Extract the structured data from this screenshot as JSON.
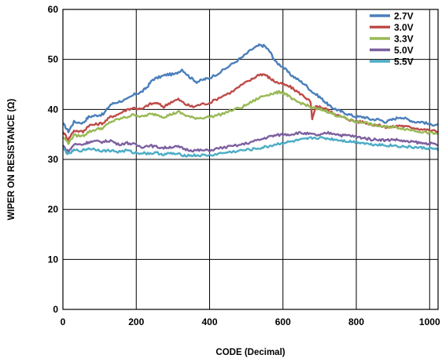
{
  "chart_data": {
    "type": "line",
    "title": "",
    "xlabel": "CODE (Decimal)",
    "ylabel": "WIPER ON RESISTANCE (Ω)",
    "xlim": [
      0,
      1023
    ],
    "ylim": [
      0,
      60
    ],
    "x_ticks": [
      0,
      200,
      400,
      600,
      800,
      1000
    ],
    "x_tick_labels": [
      "0",
      "200",
      "400",
      "600",
      "800",
      "1000"
    ],
    "y_ticks": [
      0,
      10,
      20,
      30,
      40,
      50,
      60
    ],
    "y_tick_labels": [
      "0",
      "10",
      "20",
      "30",
      "40",
      "50",
      "60"
    ],
    "grid": true,
    "legend_position": "top-right",
    "series": [
      {
        "name": "2.7V",
        "color": "#4a7ebb",
        "points": [
          [
            0,
            37.2
          ],
          [
            15,
            35.6
          ],
          [
            30,
            37.5
          ],
          [
            55,
            37.3
          ],
          [
            70,
            38.5
          ],
          [
            90,
            38.8
          ],
          [
            110,
            39
          ],
          [
            130,
            41
          ],
          [
            150,
            41.5
          ],
          [
            175,
            42
          ],
          [
            195,
            43
          ],
          [
            215,
            43.5
          ],
          [
            230,
            44.5
          ],
          [
            245,
            46
          ],
          [
            265,
            46.5
          ],
          [
            285,
            47
          ],
          [
            305,
            47
          ],
          [
            325,
            48
          ],
          [
            345,
            46.5
          ],
          [
            365,
            45.5
          ],
          [
            385,
            46
          ],
          [
            400,
            46.3
          ],
          [
            430,
            47.5
          ],
          [
            460,
            49
          ],
          [
            490,
            50.5
          ],
          [
            515,
            52
          ],
          [
            535,
            52.8
          ],
          [
            550,
            52.7
          ],
          [
            565,
            51.5
          ],
          [
            580,
            49.5
          ],
          [
            600,
            48.5
          ],
          [
            620,
            47
          ],
          [
            640,
            46
          ],
          [
            660,
            45
          ],
          [
            680,
            43.5
          ],
          [
            700,
            42.5
          ],
          [
            715,
            41.5
          ],
          [
            730,
            40.5
          ],
          [
            745,
            40
          ],
          [
            760,
            39.5
          ],
          [
            780,
            39
          ],
          [
            800,
            38.5
          ],
          [
            820,
            38.5
          ],
          [
            840,
            38
          ],
          [
            860,
            38
          ],
          [
            880,
            37.5
          ],
          [
            900,
            38
          ],
          [
            920,
            38.5
          ],
          [
            940,
            38
          ],
          [
            960,
            37.5
          ],
          [
            980,
            37.5
          ],
          [
            1000,
            37
          ],
          [
            1023,
            37
          ]
        ]
      },
      {
        "name": "3.0V",
        "color": "#be4b48",
        "points": [
          [
            0,
            35.5
          ],
          [
            15,
            34
          ],
          [
            30,
            35.8
          ],
          [
            55,
            35.5
          ],
          [
            70,
            36.8
          ],
          [
            90,
            37
          ],
          [
            110,
            37.3
          ],
          [
            130,
            38.5
          ],
          [
            150,
            39
          ],
          [
            175,
            40
          ],
          [
            195,
            40.3
          ],
          [
            215,
            40
          ],
          [
            235,
            41
          ],
          [
            255,
            41.3
          ],
          [
            275,
            40.5
          ],
          [
            295,
            41.5
          ],
          [
            315,
            42
          ],
          [
            335,
            41
          ],
          [
            355,
            40.5
          ],
          [
            375,
            41
          ],
          [
            400,
            41.3
          ],
          [
            430,
            42.5
          ],
          [
            460,
            43.5
          ],
          [
            490,
            45
          ],
          [
            515,
            46
          ],
          [
            535,
            47
          ],
          [
            550,
            47
          ],
          [
            565,
            46.2
          ],
          [
            580,
            45.5
          ],
          [
            600,
            45
          ],
          [
            620,
            44.5
          ],
          [
            640,
            43.5
          ],
          [
            660,
            42.5
          ],
          [
            675,
            41.5
          ],
          [
            680,
            38
          ],
          [
            690,
            40.5
          ],
          [
            700,
            40.5
          ],
          [
            715,
            40.2
          ],
          [
            730,
            39.5
          ],
          [
            745,
            39
          ],
          [
            760,
            38.5
          ],
          [
            780,
            38
          ],
          [
            800,
            37.5
          ],
          [
            820,
            37.5
          ],
          [
            840,
            37
          ],
          [
            860,
            36.8
          ],
          [
            880,
            36.5
          ],
          [
            900,
            36.5
          ],
          [
            920,
            36.8
          ],
          [
            940,
            36.5
          ],
          [
            960,
            36.3
          ],
          [
            980,
            36
          ],
          [
            1000,
            35.8
          ],
          [
            1023,
            35.6
          ]
        ]
      },
      {
        "name": "3.3V",
        "color": "#98b954",
        "points": [
          [
            0,
            34.5
          ],
          [
            15,
            33.3
          ],
          [
            30,
            34.8
          ],
          [
            55,
            34.7
          ],
          [
            70,
            35.5
          ],
          [
            90,
            36
          ],
          [
            110,
            36.3
          ],
          [
            130,
            37.5
          ],
          [
            150,
            38
          ],
          [
            175,
            38.5
          ],
          [
            195,
            39
          ],
          [
            215,
            38.5
          ],
          [
            235,
            39
          ],
          [
            255,
            39
          ],
          [
            275,
            38.5
          ],
          [
            295,
            39
          ],
          [
            315,
            39.5
          ],
          [
            335,
            38.8
          ],
          [
            355,
            38.3
          ],
          [
            375,
            38.3
          ],
          [
            400,
            38.5
          ],
          [
            430,
            39
          ],
          [
            460,
            39.8
          ],
          [
            490,
            40.5
          ],
          [
            515,
            41.5
          ],
          [
            540,
            42.5
          ],
          [
            560,
            43
          ],
          [
            580,
            43.3
          ],
          [
            595,
            43.5
          ],
          [
            610,
            43
          ],
          [
            625,
            42
          ],
          [
            640,
            41.5
          ],
          [
            660,
            41
          ],
          [
            680,
            40.3
          ],
          [
            700,
            40
          ],
          [
            715,
            39.8
          ],
          [
            730,
            39.3
          ],
          [
            745,
            38.8
          ],
          [
            760,
            38.5
          ],
          [
            780,
            38
          ],
          [
            800,
            37.5
          ],
          [
            820,
            37.5
          ],
          [
            840,
            37
          ],
          [
            860,
            36.7
          ],
          [
            880,
            36.5
          ],
          [
            900,
            36.5
          ],
          [
            920,
            36.3
          ],
          [
            940,
            36
          ],
          [
            960,
            35.8
          ],
          [
            980,
            35.5
          ],
          [
            1000,
            35.3
          ],
          [
            1023,
            35
          ]
        ]
      },
      {
        "name": "5.0V",
        "color": "#7d60a0",
        "points": [
          [
            0,
            32.8
          ],
          [
            15,
            31.5
          ],
          [
            30,
            33
          ],
          [
            55,
            33
          ],
          [
            70,
            33.5
          ],
          [
            90,
            33.6
          ],
          [
            110,
            33.5
          ],
          [
            130,
            33.8
          ],
          [
            150,
            33
          ],
          [
            175,
            33.3
          ],
          [
            195,
            33
          ],
          [
            215,
            32.5
          ],
          [
            235,
            32.8
          ],
          [
            255,
            32.5
          ],
          [
            275,
            32.3
          ],
          [
            295,
            32.5
          ],
          [
            315,
            32.5
          ],
          [
            335,
            32
          ],
          [
            355,
            31.8
          ],
          [
            375,
            31.8
          ],
          [
            400,
            31.8
          ],
          [
            430,
            32.3
          ],
          [
            460,
            32.6
          ],
          [
            490,
            33
          ],
          [
            515,
            33.5
          ],
          [
            540,
            34
          ],
          [
            560,
            34.5
          ],
          [
            580,
            34.8
          ],
          [
            600,
            35
          ],
          [
            620,
            35
          ],
          [
            640,
            35.3
          ],
          [
            660,
            35.2
          ],
          [
            680,
            35
          ],
          [
            700,
            34.8
          ],
          [
            720,
            35.3
          ],
          [
            740,
            35.2
          ],
          [
            760,
            34.8
          ],
          [
            780,
            34.8
          ],
          [
            800,
            34.5
          ],
          [
            820,
            34.3
          ],
          [
            840,
            34
          ],
          [
            860,
            34
          ],
          [
            880,
            33.8
          ],
          [
            900,
            34
          ],
          [
            920,
            33.8
          ],
          [
            940,
            33.5
          ],
          [
            960,
            33.5
          ],
          [
            980,
            33.2
          ],
          [
            1000,
            33.2
          ],
          [
            1023,
            32.8
          ]
        ]
      },
      {
        "name": "5.5V",
        "color": "#4bacc6",
        "points": [
          [
            0,
            32.2
          ],
          [
            15,
            31
          ],
          [
            30,
            31.8
          ],
          [
            55,
            31.8
          ],
          [
            70,
            32.2
          ],
          [
            90,
            32
          ],
          [
            110,
            31.7
          ],
          [
            130,
            31.8
          ],
          [
            150,
            31.5
          ],
          [
            175,
            31.8
          ],
          [
            195,
            31.3
          ],
          [
            215,
            31.3
          ],
          [
            235,
            31.2
          ],
          [
            255,
            31.3
          ],
          [
            275,
            31
          ],
          [
            295,
            31.2
          ],
          [
            315,
            31
          ],
          [
            335,
            30.8
          ],
          [
            355,
            30.8
          ],
          [
            375,
            30.8
          ],
          [
            400,
            30.8
          ],
          [
            430,
            31.2
          ],
          [
            460,
            31.5
          ],
          [
            490,
            31.8
          ],
          [
            515,
            32
          ],
          [
            540,
            32.3
          ],
          [
            560,
            32.6
          ],
          [
            580,
            33
          ],
          [
            600,
            33.3
          ],
          [
            620,
            33.5
          ],
          [
            640,
            33.8
          ],
          [
            660,
            34
          ],
          [
            680,
            34.3
          ],
          [
            700,
            34.3
          ],
          [
            720,
            34.2
          ],
          [
            740,
            34
          ],
          [
            760,
            33.8
          ],
          [
            780,
            33.6
          ],
          [
            800,
            33.5
          ],
          [
            820,
            33.3
          ],
          [
            840,
            33
          ],
          [
            860,
            33
          ],
          [
            880,
            32.8
          ],
          [
            900,
            32.8
          ],
          [
            920,
            32.6
          ],
          [
            940,
            32.5
          ],
          [
            960,
            32.4
          ],
          [
            980,
            32.3
          ],
          [
            1000,
            32.2
          ],
          [
            1023,
            32
          ]
        ]
      }
    ]
  }
}
